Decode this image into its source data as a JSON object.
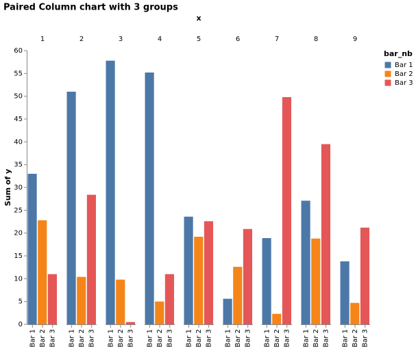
{
  "chart_data": {
    "type": "bar",
    "title": "Paired Column chart with 3 groups",
    "x_label": "x",
    "y_label": "Sum of y",
    "legend_title": "bar_nb",
    "categories": [
      "1",
      "2",
      "3",
      "4",
      "5",
      "6",
      "7",
      "8",
      "9"
    ],
    "series": [
      {
        "name": "Bar 1",
        "color": "#4c78a8",
        "values": [
          33,
          51,
          57.8,
          55.2,
          23.6,
          5.6,
          18.9,
          27.1,
          13.8
        ]
      },
      {
        "name": "Bar 2",
        "color": "#f58518",
        "values": [
          22.8,
          10.4,
          9.8,
          5,
          19.2,
          12.6,
          2.3,
          18.8,
          4.7
        ]
      },
      {
        "name": "Bar 3",
        "color": "#e45756",
        "values": [
          11,
          28.4,
          0.5,
          11,
          22.6,
          20.9,
          49.8,
          39.5,
          21.2
        ]
      }
    ],
    "ylim": [
      0,
      60
    ],
    "yticks": [
      0,
      5,
      10,
      15,
      20,
      25,
      30,
      35,
      40,
      45,
      50,
      55,
      60
    ],
    "grid": false
  }
}
